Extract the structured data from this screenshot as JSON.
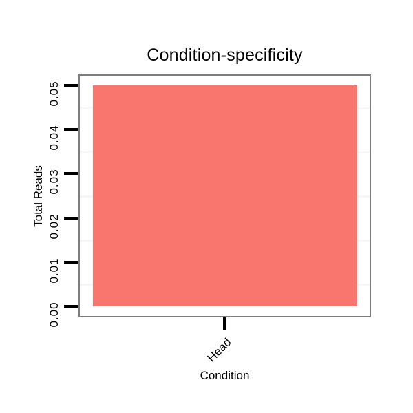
{
  "chart_data": {
    "type": "bar",
    "title": "Condition-specificity",
    "xlabel": "Condition",
    "ylabel": "Total Reads",
    "categories": [
      "Head"
    ],
    "values": [
      0.05
    ],
    "ylim": [
      0,
      0.05
    ],
    "ytick_values": [
      0,
      0.01,
      0.02,
      0.03,
      0.04,
      0.05
    ],
    "ytick_labels": [
      "0.00",
      "0.01",
      "0.02",
      "0.03",
      "0.04",
      "0.05"
    ],
    "minor_grid_values": [
      0.005,
      0.015,
      0.025,
      0.035,
      0.045
    ],
    "grid": "minor-horizontal-only",
    "legend_position": "none",
    "colors": {
      "bar_fill": "#F8766D",
      "panel_border": "#7d7d7d",
      "tick": "#000000",
      "minor_grid": "#f7f7f9",
      "background": "#ffffff",
      "text": "#000000"
    }
  }
}
